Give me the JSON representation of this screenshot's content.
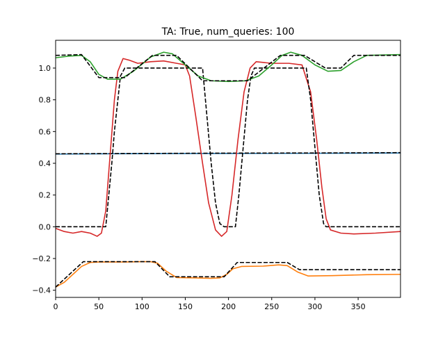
{
  "chart_data": {
    "type": "line",
    "title": "TA: True, num_queries: 100",
    "xlabel": "",
    "ylabel": "",
    "xlim": [
      0,
      399
    ],
    "ylim": [
      -0.445,
      1.175
    ],
    "xticks": [
      0,
      50,
      100,
      150,
      200,
      250,
      300,
      350
    ],
    "xtick_labels": [
      "0",
      "50",
      "100",
      "150",
      "200",
      "250",
      "300",
      "350"
    ],
    "yticks": [
      -0.4,
      -0.2,
      0.0,
      0.2,
      0.4,
      0.6,
      0.8,
      1.0
    ],
    "ytick_labels": [
      "−0.4",
      "−0.2",
      "0.0",
      "0.2",
      "0.4",
      "0.6",
      "0.8",
      "1.0"
    ],
    "grid": false,
    "legend": "none",
    "series": [
      {
        "color": "#1f77b4",
        "style": "solid",
        "points": [
          [
            0,
            0.458
          ],
          [
            100,
            0.461
          ],
          [
            200,
            0.462
          ],
          [
            300,
            0.463
          ],
          [
            399,
            0.465
          ]
        ]
      },
      {
        "color": "#000000",
        "style": "dashed",
        "points": [
          [
            0,
            0.46
          ],
          [
            100,
            0.462
          ],
          [
            200,
            0.464
          ],
          [
            300,
            0.465
          ],
          [
            399,
            0.467
          ]
        ]
      },
      {
        "color": "#ff7f0e",
        "style": "solid",
        "points": [
          [
            0,
            -0.38
          ],
          [
            10,
            -0.35
          ],
          [
            20,
            -0.3
          ],
          [
            30,
            -0.25
          ],
          [
            40,
            -0.225
          ],
          [
            50,
            -0.222
          ],
          [
            80,
            -0.222
          ],
          [
            100,
            -0.22
          ],
          [
            110,
            -0.22
          ],
          [
            118,
            -0.23
          ],
          [
            128,
            -0.28
          ],
          [
            140,
            -0.32
          ],
          [
            160,
            -0.322
          ],
          [
            180,
            -0.325
          ],
          [
            190,
            -0.322
          ],
          [
            198,
            -0.3
          ],
          [
            205,
            -0.265
          ],
          [
            215,
            -0.25
          ],
          [
            240,
            -0.248
          ],
          [
            258,
            -0.24
          ],
          [
            268,
            -0.245
          ],
          [
            280,
            -0.285
          ],
          [
            292,
            -0.31
          ],
          [
            320,
            -0.308
          ],
          [
            360,
            -0.302
          ],
          [
            399,
            -0.3
          ]
        ]
      },
      {
        "color": "#000000",
        "style": "dashed",
        "points": [
          [
            0,
            -0.38
          ],
          [
            32,
            -0.22
          ],
          [
            115,
            -0.22
          ],
          [
            132,
            -0.315
          ],
          [
            195,
            -0.315
          ],
          [
            210,
            -0.225
          ],
          [
            268,
            -0.225
          ],
          [
            282,
            -0.27
          ],
          [
            399,
            -0.27
          ]
        ]
      },
      {
        "color": "#d62728",
        "style": "solid",
        "points": [
          [
            0,
            -0.01
          ],
          [
            10,
            -0.03
          ],
          [
            20,
            -0.04
          ],
          [
            30,
            -0.03
          ],
          [
            40,
            -0.04
          ],
          [
            48,
            -0.06
          ],
          [
            53,
            -0.04
          ],
          [
            58,
            0.1
          ],
          [
            63,
            0.45
          ],
          [
            68,
            0.8
          ],
          [
            72,
            0.98
          ],
          [
            78,
            1.06
          ],
          [
            85,
            1.05
          ],
          [
            95,
            1.03
          ],
          [
            110,
            1.04
          ],
          [
            125,
            1.045
          ],
          [
            140,
            1.03
          ],
          [
            150,
            1.02
          ],
          [
            155,
            0.95
          ],
          [
            162,
            0.7
          ],
          [
            170,
            0.4
          ],
          [
            177,
            0.15
          ],
          [
            185,
            -0.02
          ],
          [
            192,
            -0.06
          ],
          [
            198,
            -0.03
          ],
          [
            204,
            0.2
          ],
          [
            211,
            0.55
          ],
          [
            218,
            0.85
          ],
          [
            225,
            1.0
          ],
          [
            232,
            1.04
          ],
          [
            250,
            1.03
          ],
          [
            270,
            1.03
          ],
          [
            285,
            1.02
          ],
          [
            295,
            0.85
          ],
          [
            302,
            0.55
          ],
          [
            308,
            0.25
          ],
          [
            313,
            0.05
          ],
          [
            318,
            -0.02
          ],
          [
            330,
            -0.04
          ],
          [
            345,
            -0.045
          ],
          [
            370,
            -0.04
          ],
          [
            399,
            -0.03
          ]
        ]
      },
      {
        "color": "#000000",
        "style": "dashed",
        "points": [
          [
            0,
            0.0
          ],
          [
            58,
            0.0
          ],
          [
            65,
            0.4
          ],
          [
            68,
            0.6
          ],
          [
            72,
            0.8
          ],
          [
            75,
            0.95
          ],
          [
            80,
            1.0
          ],
          [
            170,
            1.0
          ],
          [
            175,
            0.7
          ],
          [
            180,
            0.4
          ],
          [
            185,
            0.15
          ],
          [
            190,
            0.02
          ],
          [
            195,
            0.0
          ],
          [
            208,
            0.0
          ],
          [
            212,
            0.2
          ],
          [
            217,
            0.5
          ],
          [
            222,
            0.8
          ],
          [
            226,
            0.95
          ],
          [
            230,
            1.0
          ],
          [
            290,
            1.0
          ],
          [
            295,
            0.8
          ],
          [
            300,
            0.5
          ],
          [
            305,
            0.2
          ],
          [
            310,
            0.02
          ],
          [
            313,
            0.0
          ],
          [
            399,
            0.0
          ]
        ]
      },
      {
        "color": "#2ca02c",
        "style": "solid",
        "points": [
          [
            0,
            1.065
          ],
          [
            15,
            1.075
          ],
          [
            30,
            1.08
          ],
          [
            40,
            1.04
          ],
          [
            50,
            0.96
          ],
          [
            60,
            0.93
          ],
          [
            75,
            0.93
          ],
          [
            90,
            0.98
          ],
          [
            110,
            1.07
          ],
          [
            125,
            1.1
          ],
          [
            135,
            1.09
          ],
          [
            150,
            1.02
          ],
          [
            165,
            0.95
          ],
          [
            180,
            0.92
          ],
          [
            200,
            0.915
          ],
          [
            220,
            0.92
          ],
          [
            235,
            0.95
          ],
          [
            250,
            1.02
          ],
          [
            262,
            1.08
          ],
          [
            272,
            1.1
          ],
          [
            285,
            1.08
          ],
          [
            300,
            1.02
          ],
          [
            315,
            0.98
          ],
          [
            330,
            0.985
          ],
          [
            345,
            1.04
          ],
          [
            360,
            1.08
          ],
          [
            399,
            1.085
          ]
        ]
      },
      {
        "color": "#000000",
        "style": "dashed",
        "points": [
          [
            0,
            1.08
          ],
          [
            30,
            1.085
          ],
          [
            50,
            0.94
          ],
          [
            80,
            0.94
          ],
          [
            112,
            1.08
          ],
          [
            140,
            1.08
          ],
          [
            170,
            0.92
          ],
          [
            222,
            0.92
          ],
          [
            260,
            1.08
          ],
          [
            288,
            1.08
          ],
          [
            312,
            1.0
          ],
          [
            330,
            1.0
          ],
          [
            345,
            1.08
          ],
          [
            399,
            1.08
          ]
        ]
      }
    ]
  }
}
